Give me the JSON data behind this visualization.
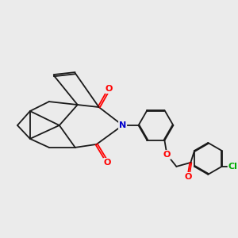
{
  "background_color": "#ebebeb",
  "bond_color": "#1a1a1a",
  "bond_width": 1.3,
  "atom_colors": {
    "O": "#ff0000",
    "N": "#0000cc",
    "Cl": "#00aa00",
    "C": "#1a1a1a"
  },
  "figsize": [
    3.0,
    3.0
  ],
  "dpi": 100
}
